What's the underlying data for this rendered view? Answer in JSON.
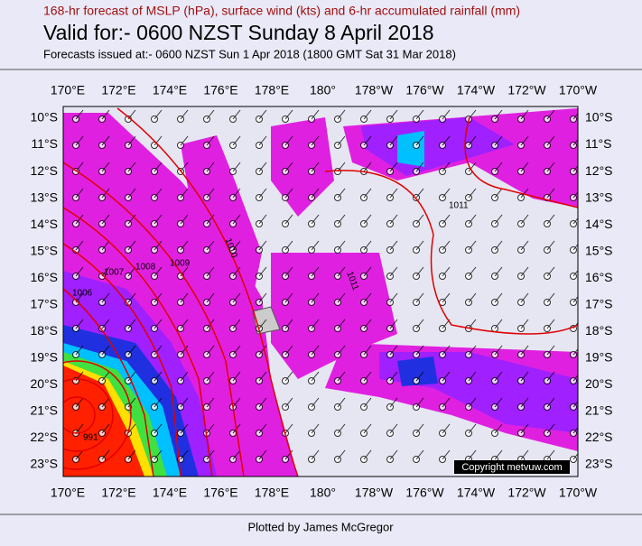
{
  "header": {
    "subtitle": "168-hr forecast of MSLP (hPa), surface wind (kts) and 6-hr accumulated rainfall (mm)",
    "title": "Valid for:- 0600 NZST Sunday  8 April 2018",
    "issued": "Forecasts issued at:- 0600 NZST Sun  1 Apr 2018 (1800 GMT Sat 31 Mar 2018)"
  },
  "map": {
    "lon_labels": [
      "170°E",
      "172°E",
      "174°E",
      "176°E",
      "178°E",
      "180°",
      "178°W",
      "176°W",
      "174°W",
      "172°W",
      "170°W"
    ],
    "lat_labels": [
      "10°S",
      "11°S",
      "12°S",
      "13°S",
      "14°S",
      "15°S",
      "16°S",
      "17°S",
      "18°S",
      "19°S",
      "20°S",
      "21°S",
      "22°S",
      "23°S"
    ],
    "isobar_labels": [
      "1011",
      "1010",
      "1009",
      "1008",
      "1007",
      "1006",
      "1011",
      "991"
    ],
    "copyright": "Copyright metvuw.com"
  },
  "footer": "Plotted by James McGregor"
}
